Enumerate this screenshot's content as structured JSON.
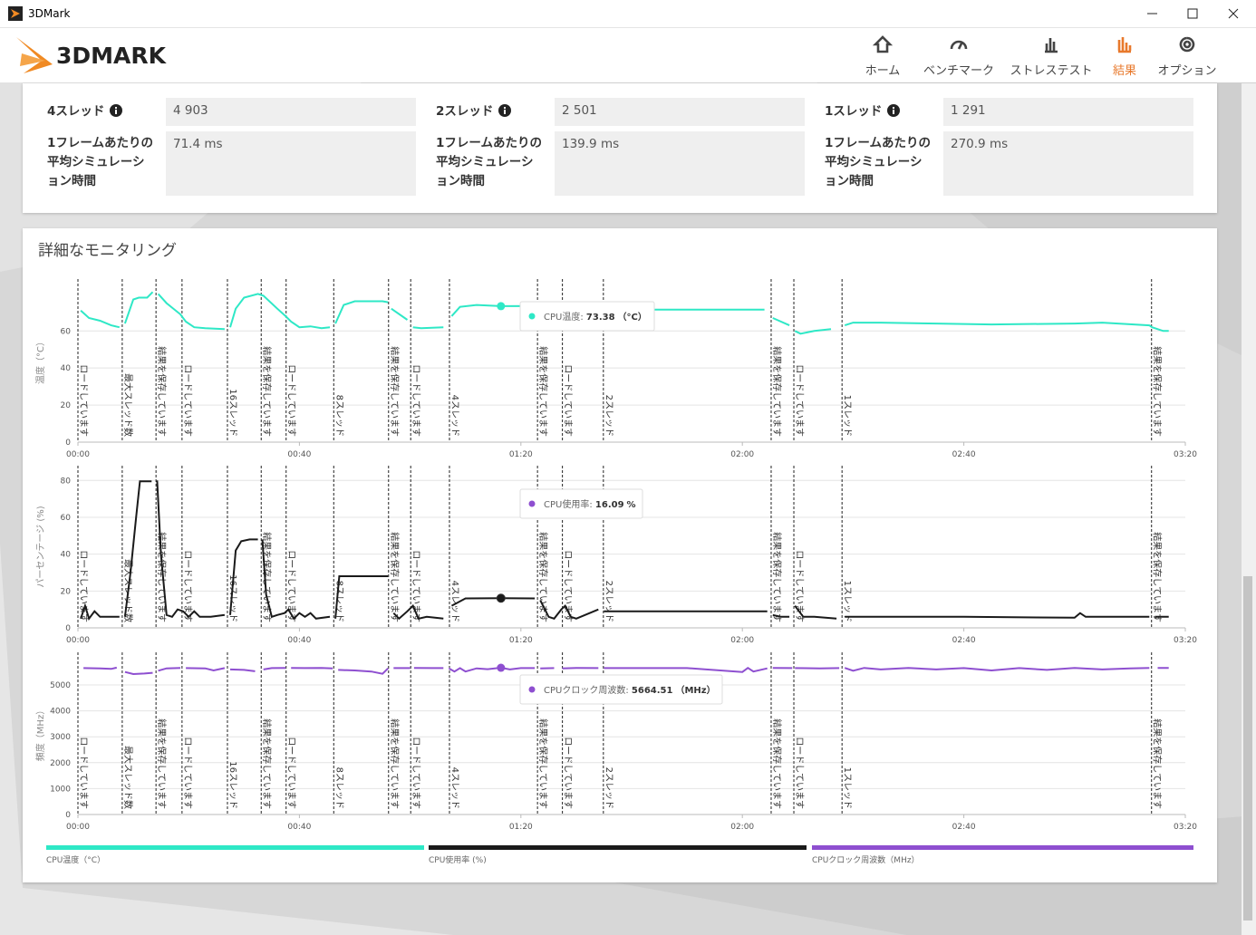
{
  "window": {
    "title": "3DMark"
  },
  "header": {
    "logo": "3DMARK",
    "nav": [
      "ホーム",
      "ベンチマーク",
      "ストレステスト",
      "結果",
      "オプション"
    ],
    "active": 3
  },
  "results": [
    {
      "label": "4スレッド",
      "value": "4 903",
      "frame_label": "1フレームあたりの平均シミュレーション時間",
      "frame_value": "71.4 ms"
    },
    {
      "label": "2スレッド",
      "value": "2 501",
      "frame_label": "1フレームあたりの平均シミュレーション時間",
      "frame_value": "139.9 ms"
    },
    {
      "label": "1スレッド",
      "value": "1 291",
      "frame_label": "1フレームあたりの平均シミュレーション時間",
      "frame_value": "270.9 ms"
    }
  ],
  "monitoring": {
    "title": "詳細なモニタリング",
    "markers": [
      {
        "x": 0,
        "label": "ロードしています"
      },
      {
        "x": 8,
        "label": "最大スレッド数"
      },
      {
        "x": 14.1,
        "label": "結果を保存しています"
      },
      {
        "x": 18.8,
        "label": "ロードしています"
      },
      {
        "x": 27,
        "label": "16スレッド"
      },
      {
        "x": 33.1,
        "label": "結果を保存しています"
      },
      {
        "x": 37.6,
        "label": "ロードしています"
      },
      {
        "x": 46.2,
        "label": "8スレッド"
      },
      {
        "x": 56.1,
        "label": "結果を保存しています"
      },
      {
        "x": 60.1,
        "label": "ロードしています"
      },
      {
        "x": 67.1,
        "label": "4スレッド"
      },
      {
        "x": 83,
        "label": "結果を保存しています"
      },
      {
        "x": 87.5,
        "label": "ロードしています"
      },
      {
        "x": 94.9,
        "label": "2スレッド"
      },
      {
        "x": 125.2,
        "label": "結果を保存しています"
      },
      {
        "x": 129.3,
        "label": "ロードしています"
      },
      {
        "x": 138,
        "label": "1スレッド"
      },
      {
        "x": 193.9,
        "label": "結果を保存しています"
      }
    ]
  },
  "chart_data": [
    {
      "type": "line",
      "y_label": "温度（°C）",
      "xlim": [
        0,
        200
      ],
      "xticks": [
        {
          "value": 0,
          "label": "00:00"
        },
        {
          "value": 40,
          "label": "00:40"
        },
        {
          "value": 80,
          "label": "01:20"
        },
        {
          "value": 120,
          "label": "02:00"
        },
        {
          "value": 160,
          "label": "02:40"
        },
        {
          "value": 200,
          "label": "03:20"
        }
      ],
      "ylim": [
        0,
        88
      ],
      "yticks": [
        0,
        20,
        40,
        60
      ],
      "grid": true,
      "x": [
        0.5,
        2,
        4,
        6,
        7.5,
        8,
        8.5,
        10,
        11,
        12.5,
        13.5,
        14.1,
        14.5,
        16,
        18.5,
        19.5,
        21,
        23,
        26.5,
        27,
        27.5,
        28.5,
        30,
        32.5,
        33.5,
        36,
        37.5,
        38.5,
        40,
        42,
        44,
        45.5,
        46.2,
        46.5,
        48,
        50,
        55,
        56,
        56.3,
        56.6,
        59.5,
        60.1,
        60.5,
        62,
        66,
        67.1,
        67.5,
        69,
        72,
        76.4,
        82.5,
        83.5,
        88,
        94,
        100,
        110,
        124,
        125.2,
        125.5,
        128.5,
        129.3,
        129.5,
        130.5,
        133,
        136,
        138,
        138.5,
        140,
        145,
        155,
        165,
        180,
        185,
        193.5,
        194,
        196,
        197
      ],
      "series": [
        {
          "name": "CPU温度（°C）",
          "color": "#2ee8c6",
          "values": [
            71,
            67,
            65.5,
            63,
            62,
            null,
            64,
            77,
            78,
            78,
            81,
            null,
            80,
            75,
            69,
            65,
            62,
            61.5,
            61,
            null,
            62,
            72,
            78,
            80,
            79,
            72,
            68,
            65,
            62,
            62.5,
            61.5,
            62,
            null,
            64,
            74,
            76,
            76,
            75.5,
            null,
            72,
            66,
            null,
            62,
            61.5,
            62,
            null,
            68,
            73,
            74,
            73.38,
            73.5,
            72,
            72,
            72,
            71.5,
            71.5,
            71.5,
            null,
            67,
            63,
            null,
            60,
            58.5,
            60,
            61,
            null,
            63,
            64.5,
            64.5,
            64,
            63.5,
            64,
            64.5,
            63,
            62,
            60,
            60
          ]
        }
      ],
      "tooltip": {
        "label": "CPU温度",
        "x": 76.4,
        "value": 73.38,
        "unit": "（°C）"
      }
    },
    {
      "type": "line",
      "y_label": "パーセンテージ (%)",
      "xlim": [
        0,
        200
      ],
      "xticks": [
        {
          "value": 0,
          "label": "00:00"
        },
        {
          "value": 40,
          "label": "00:40"
        },
        {
          "value": 80,
          "label": "01:20"
        },
        {
          "value": 120,
          "label": "02:00"
        },
        {
          "value": 160,
          "label": "02:40"
        },
        {
          "value": 200,
          "label": "03:20"
        }
      ],
      "ylim": [
        0,
        88
      ],
      "yticks": [
        0,
        20,
        40,
        60,
        80
      ],
      "grid": true,
      "x": [
        0.5,
        1.3,
        2,
        3,
        4,
        7.5,
        8,
        8.5,
        9.5,
        10.5,
        11.2,
        13.3,
        14,
        14.3,
        15,
        16,
        17,
        18,
        19,
        20,
        21,
        22,
        24,
        26.5,
        27,
        27.5,
        28.5,
        29.5,
        31,
        32.5,
        33,
        33.3,
        34,
        35,
        36,
        37.3,
        38,
        39,
        40,
        41,
        42,
        43,
        45.5,
        46,
        46.5,
        47.2,
        50,
        56,
        56.5,
        57,
        58,
        59.5,
        60.5,
        61.5,
        63,
        66,
        66.7,
        67.5,
        70,
        76.4,
        82.5,
        83,
        83.5,
        85,
        86,
        87.3,
        88,
        89,
        90,
        94,
        94.5,
        95,
        110,
        124.5,
        125,
        125.5,
        127,
        128.5,
        129,
        129.5,
        131,
        133,
        137,
        137.5,
        138.5,
        160,
        180,
        181,
        182,
        193.5,
        194,
        194.5,
        197
      ],
      "series": [
        {
          "name": "CPU使用率 (%)",
          "color": "#1a1a1a",
          "values": [
            5,
            12,
            5,
            9,
            6,
            6,
            null,
            6,
            30,
            60,
            79.5,
            79.5,
            null,
            80,
            40,
            7,
            6,
            10,
            9,
            6,
            9,
            6,
            6,
            7,
            null,
            7,
            42,
            47,
            48,
            48,
            null,
            48,
            18,
            6,
            7,
            8,
            10,
            5,
            8,
            6,
            8,
            5,
            6,
            null,
            5,
            28,
            28,
            28,
            null,
            8,
            5,
            9,
            12,
            5,
            6,
            5,
            null,
            12,
            16,
            16.09,
            16,
            null,
            15,
            6,
            5,
            10,
            12,
            6,
            5,
            10,
            null,
            9,
            9,
            9,
            null,
            7,
            6,
            6,
            null,
            12,
            6,
            6,
            5,
            null,
            6,
            6,
            5.5,
            8,
            6,
            6,
            null,
            6,
            6
          ]
        }
      ],
      "tooltip": {
        "label": "CPU使用率",
        "x": 76.4,
        "value": 16.09,
        "unit": "%"
      }
    },
    {
      "type": "line",
      "y_label": "頻度（MHz）",
      "xlim": [
        0,
        200
      ],
      "xticks": [
        {
          "value": 0,
          "label": "00:00"
        },
        {
          "value": 40,
          "label": "00:40"
        },
        {
          "value": 80,
          "label": "01:20"
        },
        {
          "value": 120,
          "label": "02:00"
        },
        {
          "value": 160,
          "label": "02:40"
        },
        {
          "value": 200,
          "label": "03:20"
        }
      ],
      "ylim": [
        0,
        6260
      ],
      "yticks": [
        0,
        1000,
        2000,
        3000,
        4000,
        5000
      ],
      "grid": true,
      "x": [
        1,
        4,
        6,
        7,
        8,
        8.5,
        10,
        12,
        13.5,
        14,
        14.5,
        16,
        18.5,
        19,
        19.5,
        23,
        24.5,
        26.5,
        27,
        27.5,
        30,
        32,
        33,
        33.5,
        35,
        37.5,
        38,
        38.5,
        41,
        44,
        46,
        46.5,
        47,
        50,
        53,
        55,
        56,
        56.5,
        57,
        60,
        60.3,
        60.7,
        64,
        66,
        66.5,
        67,
        68,
        69,
        70,
        72,
        74,
        76.4,
        78,
        80,
        82.5,
        83,
        83.5,
        86,
        87,
        87.5,
        90,
        94,
        94.5,
        95,
        110,
        120,
        121,
        122,
        124.5,
        125,
        125.5,
        129,
        129.3,
        129.5,
        134,
        137.5,
        138,
        138.5,
        140,
        142,
        145,
        150,
        155,
        160,
        165,
        170,
        175,
        180,
        185,
        190,
        193.5,
        194,
        195,
        197
      ],
      "series": [
        {
          "name": "CPUクロック周波数（MHz）",
          "color": "#8e4fd0",
          "values": [
            5650,
            5640,
            5620,
            5670,
            null,
            5500,
            5420,
            5440,
            5470,
            null,
            5550,
            5640,
            5660,
            null,
            5650,
            5640,
            5560,
            5650,
            null,
            5600,
            5580,
            5530,
            null,
            5600,
            5650,
            5660,
            null,
            5660,
            5650,
            5660,
            5640,
            null,
            5580,
            5560,
            5520,
            5430,
            5640,
            null,
            5650,
            5650,
            null,
            5660,
            5650,
            5650,
            null,
            5640,
            5520,
            5650,
            5520,
            5640,
            5610,
            5664.51,
            5600,
            5650,
            5650,
            null,
            5640,
            5650,
            null,
            5640,
            5660,
            5650,
            null,
            5650,
            5650,
            5500,
            5660,
            5520,
            5640,
            null,
            5660,
            5650,
            null,
            5650,
            5640,
            5650,
            null,
            5660,
            5550,
            5660,
            5600,
            5660,
            5600,
            5650,
            5560,
            5650,
            5580,
            5660,
            5600,
            5640,
            5660,
            null,
            5660,
            5660
          ]
        }
      ],
      "tooltip": {
        "label": "CPUクロック周波数",
        "x": 76.4,
        "value": 5664.51,
        "unit": "（MHz）"
      }
    }
  ]
}
